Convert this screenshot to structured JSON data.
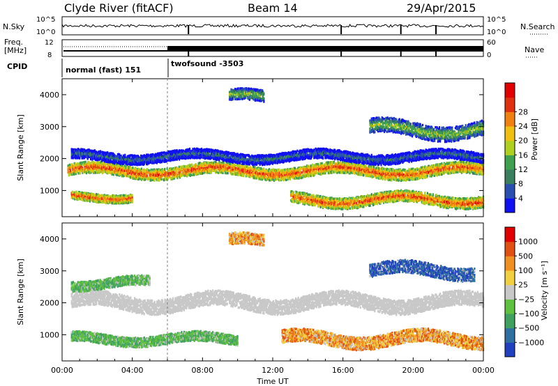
{
  "header": {
    "station": "Clyde River (fitACF)",
    "beam": "Beam 14",
    "date": "29/Apr/2015"
  },
  "status_panels": {
    "nsky_label": "N.Sky",
    "nsky_ticks": [
      "10^5",
      "10^0"
    ],
    "nsearch_label": "N.Search",
    "freq_label_line1": "Freq.",
    "freq_label_line2": "[MHz]",
    "freq_ticks": [
      "12",
      "8"
    ],
    "nave_label": "Nave",
    "nave_ticks": [
      "60",
      "0"
    ],
    "cpid_label": "CPID",
    "cpid_modes": [
      "normal (fast) 151",
      "twofsound -3503"
    ]
  },
  "chart_data": [
    {
      "type": "heatmap",
      "name": "Power",
      "ylabel": "Slant Range [km]",
      "xlabel": "",
      "x_range_hours": [
        0,
        24
      ],
      "ylim": [
        180,
        4500
      ],
      "y_ticks": [
        1000,
        2000,
        3000,
        4000
      ],
      "colorbar": {
        "label": "Power [dB]",
        "ticks": [
          "4",
          "8",
          "12",
          "16",
          "20",
          "24",
          "28"
        ],
        "colors": [
          "#1010f0",
          "#2a4fb0",
          "#3a8060",
          "#40a050",
          "#b0d020",
          "#f0c010",
          "#f08010",
          "#e03010",
          "#e00000"
        ]
      },
      "bands": [
        {
          "t0": 0.3,
          "t1": 24,
          "r_center": 1600,
          "width": 350,
          "color_hint": "strong"
        },
        {
          "t0": 0.5,
          "t1": 24,
          "r_center": 2050,
          "width": 300,
          "color_hint": "weak"
        },
        {
          "t0": 0.5,
          "t1": 4.0,
          "r_center": 800,
          "width": 250,
          "color_hint": "strong"
        },
        {
          "t0": 13.0,
          "t1": 24,
          "r_center": 700,
          "width": 350,
          "color_hint": "strong"
        },
        {
          "t0": 17.5,
          "t1": 24,
          "r_center": 2900,
          "width": 450,
          "color_hint": "mid"
        },
        {
          "t0": 9.5,
          "t1": 11.5,
          "r_center": 3900,
          "width": 350,
          "color_hint": "mid"
        }
      ]
    },
    {
      "type": "heatmap",
      "name": "Velocity",
      "ylabel": "Slant Range [km]",
      "xlabel": "Time UT",
      "x_range_hours": [
        0,
        24
      ],
      "x_ticks": [
        "00:00",
        "04:00",
        "08:00",
        "12:00",
        "16:00",
        "20:00",
        "00:00"
      ],
      "ylim": [
        180,
        4500
      ],
      "y_ticks": [
        1000,
        2000,
        3000,
        4000
      ],
      "colorbar": {
        "label": "Velocity [m s⁻¹]",
        "ticks": [
          "1000",
          "500",
          "100",
          "25",
          "−25",
          "−100",
          "−500",
          "−1000"
        ],
        "colors": [
          "#2040c0",
          "#3070a0",
          "#40a060",
          "#60c040",
          "#c8c8c8",
          "#f0d040",
          "#f09020",
          "#e05010",
          "#e00000"
        ]
      },
      "bands": [
        {
          "t0": 0.5,
          "t1": 24,
          "r_center": 2000,
          "width": 450,
          "color_hint": "gray"
        },
        {
          "t0": 0.5,
          "t1": 10.0,
          "r_center": 850,
          "width": 300,
          "color_hint": "green"
        },
        {
          "t0": 12.5,
          "t1": 24,
          "r_center": 850,
          "width": 400,
          "color_hint": "orange"
        },
        {
          "t0": 17.5,
          "t1": 23.5,
          "r_center": 3000,
          "width": 400,
          "color_hint": "blue"
        },
        {
          "t0": 0.5,
          "t1": 5.0,
          "r_center": 2600,
          "width": 300,
          "color_hint": "green"
        },
        {
          "t0": 9.5,
          "t1": 11.5,
          "r_center": 3900,
          "width": 350,
          "color_hint": "orange"
        }
      ]
    }
  ]
}
